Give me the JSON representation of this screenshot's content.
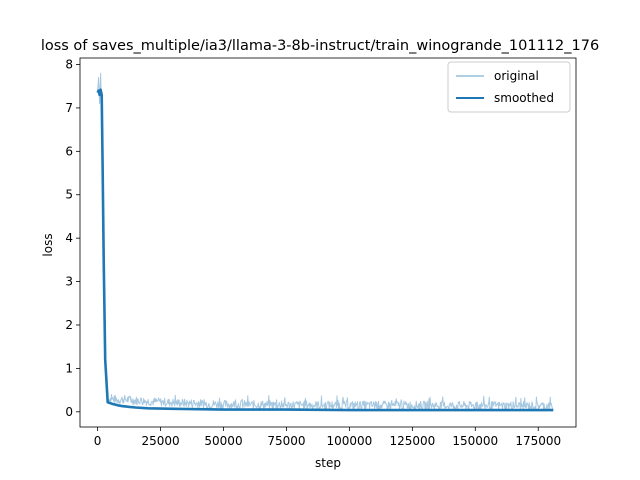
{
  "chart_data": {
    "type": "line",
    "title": "loss of saves_multiple/ia3/llama-3-8b-instruct/train_winogrande_101112_176",
    "xlabel": "step",
    "ylabel": "loss",
    "xlim": [
      -7000,
      190000
    ],
    "ylim": [
      -0.35,
      8.15
    ],
    "xticks": [
      0,
      25000,
      50000,
      75000,
      100000,
      125000,
      150000,
      175000
    ],
    "yticks": [
      0,
      1,
      2,
      3,
      4,
      5,
      6,
      7,
      8
    ],
    "grid": false,
    "legend_position": "top-right",
    "series": [
      {
        "name": "original",
        "color": "#a6c8e0",
        "x": [
          0,
          400,
          800,
          1200,
          1600,
          2000,
          2400,
          3000,
          4000,
          6000,
          8000,
          10000,
          15000,
          20000,
          30000,
          40000,
          50000,
          75000,
          100000,
          125000,
          150000,
          175000,
          181000
        ],
        "values": [
          7.4,
          7.7,
          7.1,
          7.8,
          6.9,
          5.0,
          3.0,
          1.0,
          0.3,
          0.3,
          0.28,
          0.3,
          0.27,
          0.25,
          0.22,
          0.2,
          0.18,
          0.17,
          0.16,
          0.16,
          0.15,
          0.15,
          0.15
        ]
      },
      {
        "name": "smoothed",
        "color": "#1f77b4",
        "x": [
          0,
          400,
          800,
          1200,
          1600,
          2000,
          2400,
          3000,
          4000,
          6000,
          8000,
          10000,
          15000,
          20000,
          30000,
          40000,
          50000,
          75000,
          100000,
          125000,
          150000,
          175000,
          181000
        ],
        "values": [
          7.35,
          7.4,
          7.3,
          7.42,
          7.3,
          5.5,
          3.5,
          1.2,
          0.22,
          0.18,
          0.15,
          0.13,
          0.1,
          0.08,
          0.07,
          0.06,
          0.05,
          0.05,
          0.04,
          0.04,
          0.04,
          0.04,
          0.04
        ]
      }
    ]
  }
}
